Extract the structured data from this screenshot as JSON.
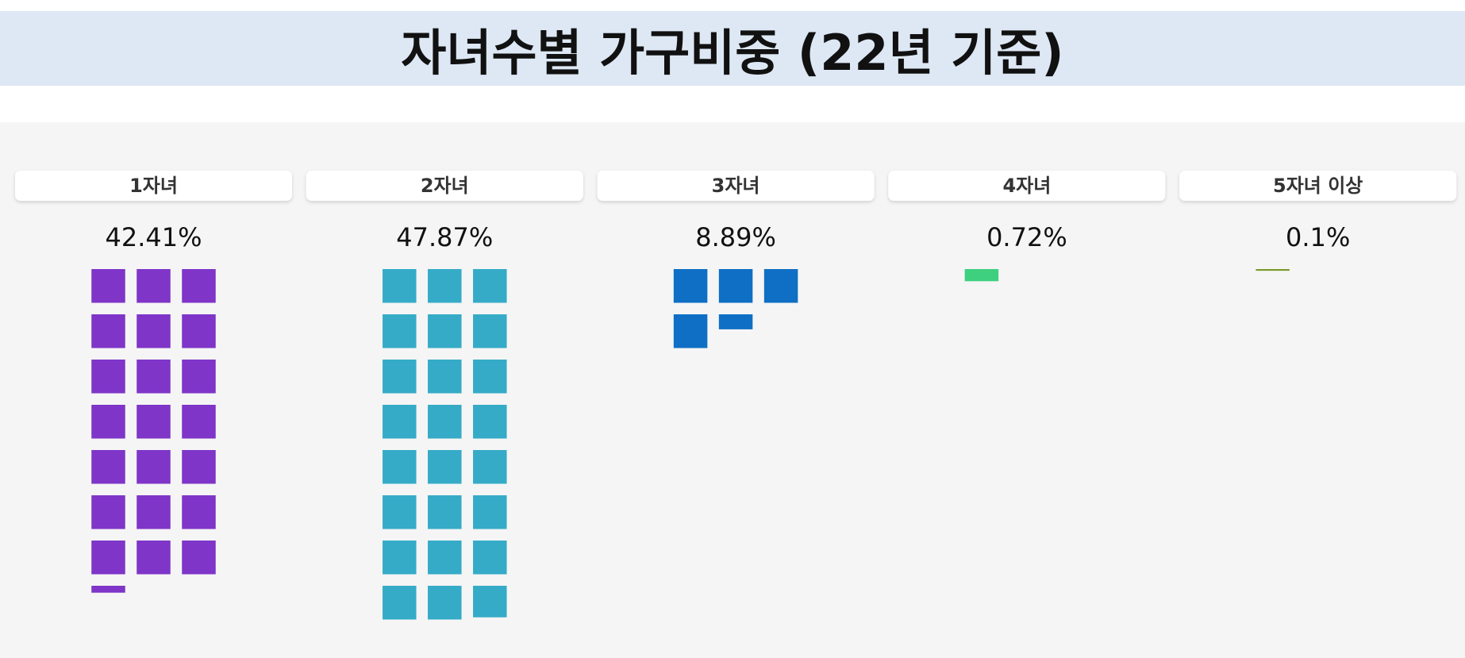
{
  "chart_data": {
    "type": "waffle",
    "title": "자녀수별 가구비중 (22년 기준)",
    "categories": [
      "1자녀",
      "2자녀",
      "3자녀",
      "4자녀",
      "5자녀 이상"
    ],
    "values": [
      42.41,
      47.87,
      8.89,
      0.72,
      0.1
    ],
    "value_labels": [
      "42.41%",
      "47.87%",
      "8.89%",
      "0.72%",
      "0.1%"
    ],
    "colors": [
      "#7e35c8",
      "#35abc7",
      "#0e6fc4",
      "#3ecf7f",
      "#7a9a2a"
    ]
  }
}
